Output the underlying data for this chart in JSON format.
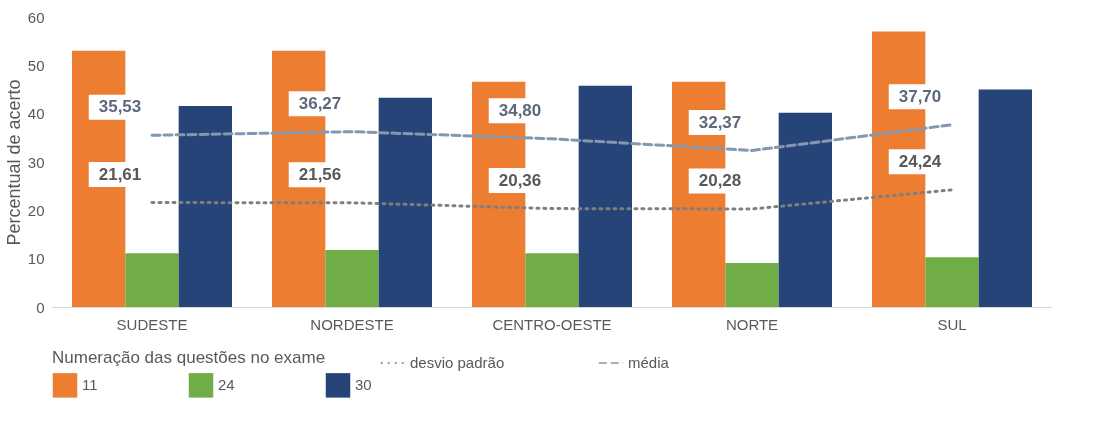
{
  "chart_data": {
    "type": "bar",
    "ylabel": "Percentual de acerto",
    "legend_title": "Numeração das questões no exame",
    "categories": [
      "SUDESTE",
      "NORDESTE",
      "CENTRO-OESTE",
      "NORTE",
      "SUL"
    ],
    "series": [
      {
        "name": "11",
        "color": "#ed7d31",
        "values": [
          53,
          53,
          46.6,
          46.6,
          57
        ]
      },
      {
        "name": "24",
        "color": "#70ad47",
        "values": [
          11.1,
          11.8,
          11.1,
          9.1,
          10.3
        ]
      },
      {
        "name": "30",
        "color": "#264478",
        "values": [
          41.6,
          43.3,
          45.8,
          40.2,
          45
        ]
      },
      {
        "name": "desvio padrão",
        "type": "line",
        "line_style": "dotted",
        "color": "#7f7f7f",
        "values": [
          21.61,
          21.56,
          20.36,
          20.28,
          24.24
        ],
        "value_labels": [
          "21,61",
          "21,56",
          "20,36",
          "20,28",
          "24,24"
        ]
      },
      {
        "name": "média",
        "type": "line",
        "line_style": "dashed",
        "color": "#8497b0",
        "values": [
          35.53,
          36.27,
          34.8,
          32.37,
          37.7
        ],
        "value_labels": [
          "35,53",
          "36,27",
          "34,80",
          "32,37",
          "37,70"
        ]
      }
    ],
    "ylim": [
      0,
      60
    ],
    "yticks": [
      0,
      10,
      20,
      30,
      40,
      50,
      60
    ],
    "grid": false,
    "legend": "bottom"
  }
}
